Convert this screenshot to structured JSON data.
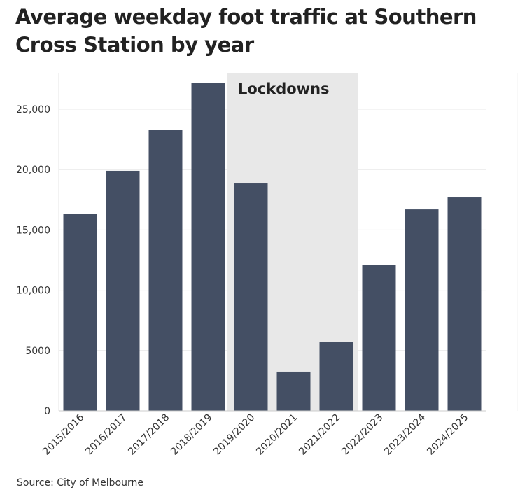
{
  "chart_data": {
    "type": "bar",
    "title": "Average weekday foot traffic at Southern Cross Station by year",
    "xlabel": "",
    "ylabel": "",
    "categories": [
      "2015/2016",
      "2016/2017",
      "2017/2018",
      "2018/2019",
      "2019/2020",
      "2020/2021",
      "2021/2022",
      "2022/2023",
      "2023/2024",
      "2024/2025"
    ],
    "values": [
      16300,
      19900,
      23260,
      27150,
      18850,
      3250,
      5740,
      12120,
      16700,
      17690
    ],
    "ylim": [
      0,
      28000
    ],
    "yticks": [
      0,
      5000,
      10000,
      15000,
      20000,
      25000
    ],
    "ytick_labels": [
      "0",
      "5000",
      "10,000",
      "15,000",
      "20,000",
      "25,000"
    ],
    "grid": true,
    "annotation": {
      "label": "Lockdowns",
      "from": "2019/2020",
      "to": "2021/2022"
    },
    "bar_color": "#404b61",
    "band_color": "#e8e8e8"
  },
  "source": "Source: City of Melbourne"
}
